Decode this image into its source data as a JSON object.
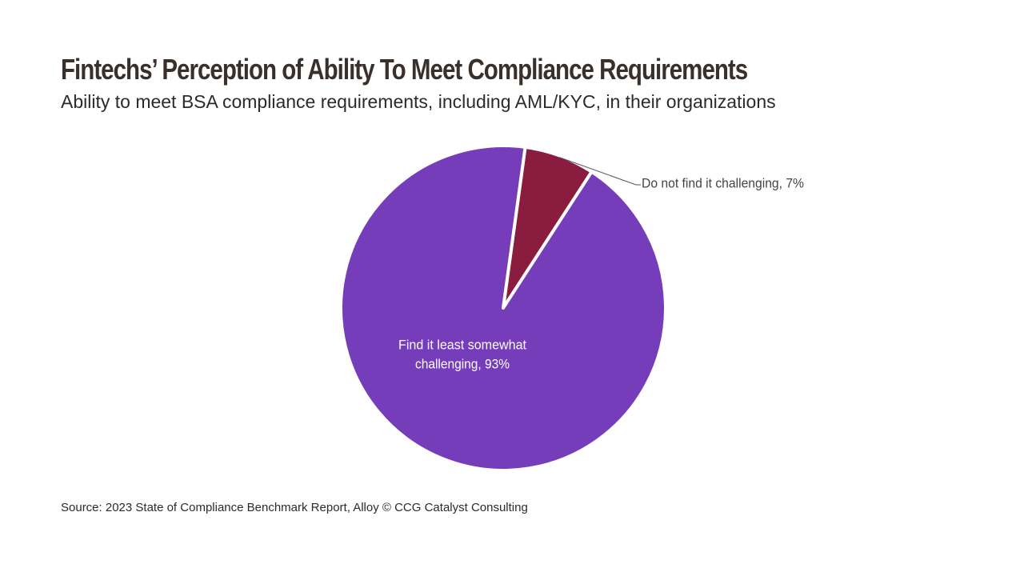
{
  "header": {
    "title": "Fintechs’ Perception of Ability To Meet Compliance Requirements",
    "subtitle": "Ability to meet BSA compliance requirements, including AML/KYC, in their organizations"
  },
  "footer": {
    "source": "Source: 2023 State of Compliance Benchmark Report, Alloy © CCG Catalyst Consulting"
  },
  "chart_data": {
    "type": "pie",
    "title": "Fintechs’ Perception of Ability To Meet Compliance Requirements",
    "subtitle": "Ability to meet BSA compliance requirements, including AML/KYC, in their organizations",
    "slices": [
      {
        "label": "Do not find it challenging, 7%",
        "value": 7,
        "color": "#8a1c3f",
        "label_position": "outside"
      },
      {
        "label_lines": [
          "Find it least somewhat",
          "challenging, 93%"
        ],
        "value": 93,
        "color": "#763dbb",
        "label_position": "inside"
      }
    ],
    "start_angle_deg": 7.8,
    "direction": "clockwise",
    "slice_border_color": "#ffffff",
    "legend": "none"
  }
}
